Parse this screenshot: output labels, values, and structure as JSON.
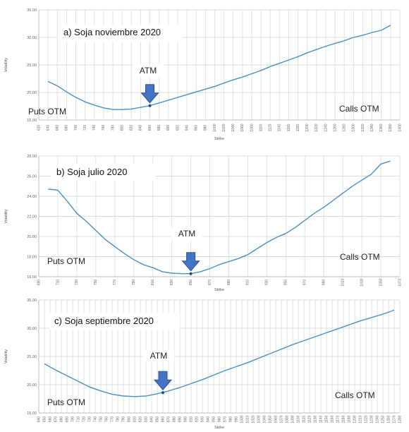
{
  "chart_data": [
    {
      "type": "line",
      "title": "a) Soja noviembre 2020",
      "xlabel": "Strike",
      "ylabel": "Volatility",
      "xlim": [
        620,
        1400
      ],
      "ylim": [
        15,
        35
      ],
      "x_ticks": [
        620,
        640,
        660,
        680,
        700,
        720,
        740,
        760,
        780,
        800,
        820,
        840,
        860,
        880,
        900,
        920,
        940,
        960,
        980,
        1000,
        1020,
        1040,
        1060,
        1080,
        1100,
        1120,
        1140,
        1160,
        1180,
        1200,
        1220,
        1240,
        1260,
        1280,
        1300,
        1320,
        1340,
        1360,
        1380,
        1400
      ],
      "y_ticks": [
        15,
        20,
        25,
        30,
        35
      ],
      "y_tick_labels": [
        "15.00",
        "20.00",
        "25.00",
        "30.00",
        "35.00"
      ],
      "atm": {
        "x": 860,
        "y": 17.6,
        "label": "ATM"
      },
      "puts_label": "Puts OTM",
      "calls_label": "Calls OTM",
      "series": [
        {
          "x": [
            640,
            660,
            680,
            700,
            720,
            740,
            760,
            780,
            800,
            820,
            840,
            860,
            880,
            900,
            920,
            940,
            960,
            980,
            1000,
            1020,
            1040,
            1060,
            1080,
            1100,
            1120,
            1140,
            1160,
            1180,
            1200,
            1220,
            1240,
            1260,
            1280,
            1300,
            1320,
            1340,
            1360,
            1380
          ],
          "y": [
            22.0,
            21.2,
            20.1,
            19.1,
            18.3,
            17.7,
            17.2,
            16.9,
            16.9,
            17.0,
            17.3,
            17.6,
            18.1,
            18.6,
            19.1,
            19.6,
            20.1,
            20.6,
            21.1,
            21.7,
            22.3,
            22.8,
            23.4,
            24.0,
            24.7,
            25.3,
            25.9,
            26.5,
            27.2,
            27.8,
            28.4,
            28.9,
            29.4,
            30.0,
            30.4,
            30.9,
            31.3,
            32.2
          ]
        }
      ]
    },
    {
      "type": "line",
      "title": "b) Soja julio 2020",
      "xlabel": "Strike",
      "ylabel": "Volatility",
      "xlim": [
        690,
        1070
      ],
      "ylim": [
        16,
        28
      ],
      "x_ticks": [
        690,
        710,
        730,
        750,
        770,
        790,
        810,
        830,
        850,
        870,
        890,
        910,
        930,
        950,
        970,
        990,
        1010,
        1030,
        1050,
        1070
      ],
      "y_ticks": [
        16,
        18,
        20,
        22,
        24,
        26,
        28
      ],
      "y_tick_labels": [
        "16.00",
        "18.00",
        "20.00",
        "22.00",
        "24.00",
        "26.00",
        "28.00"
      ],
      "atm": {
        "x": 850,
        "y": 16.3,
        "label": "ATM"
      },
      "puts_label": "Puts OTM",
      "calls_label": "Calls OTM",
      "series": [
        {
          "x": [
            700,
            710,
            720,
            730,
            740,
            750,
            760,
            770,
            780,
            790,
            800,
            810,
            820,
            830,
            840,
            850,
            860,
            870,
            880,
            890,
            900,
            910,
            920,
            930,
            940,
            950,
            960,
            970,
            980,
            990,
            1000,
            1010,
            1020,
            1030,
            1040,
            1050,
            1060
          ],
          "y": [
            24.7,
            24.6,
            23.5,
            22.3,
            21.5,
            20.6,
            19.7,
            19.0,
            18.3,
            17.7,
            17.2,
            16.9,
            16.5,
            16.35,
            16.3,
            16.3,
            16.5,
            16.8,
            17.2,
            17.5,
            17.8,
            18.2,
            18.8,
            19.4,
            19.9,
            20.3,
            20.9,
            21.6,
            22.3,
            22.9,
            23.6,
            24.3,
            25.0,
            25.6,
            26.2,
            27.2,
            27.5
          ]
        }
      ]
    },
    {
      "type": "line",
      "title": "c) Soja septiembre 2020",
      "xlabel": "Strike",
      "ylabel": "Volatility",
      "xlim": [
        640,
        1280
      ],
      "ylim": [
        15,
        35
      ],
      "x_ticks": [
        640,
        650,
        660,
        670,
        680,
        690,
        700,
        710,
        720,
        730,
        740,
        750,
        760,
        770,
        780,
        790,
        800,
        810,
        820,
        830,
        840,
        850,
        860,
        870,
        880,
        890,
        900,
        910,
        920,
        930,
        940,
        950,
        960,
        970,
        980,
        990,
        1000,
        1010,
        1020,
        1030,
        1040,
        1050,
        1060,
        1070,
        1080,
        1090,
        1100,
        1110,
        1120,
        1130,
        1140,
        1150,
        1160,
        1170,
        1180,
        1190,
        1200,
        1210,
        1220,
        1230,
        1240,
        1250,
        1260,
        1270,
        1280
      ],
      "y_ticks": [
        15,
        20,
        25,
        30,
        35
      ],
      "y_tick_labels": [
        "15.00",
        "20.00",
        "25.00",
        "30.00",
        "35.00"
      ],
      "atm": {
        "x": 860,
        "y": 18.6,
        "label": "ATM"
      },
      "puts_label": "Puts OTM",
      "calls_label": "Calls OTM",
      "series": [
        {
          "x": [
            650,
            670,
            690,
            710,
            730,
            750,
            770,
            790,
            810,
            830,
            850,
            870,
            890,
            910,
            930,
            950,
            970,
            990,
            1010,
            1030,
            1050,
            1070,
            1090,
            1110,
            1130,
            1150,
            1170,
            1190,
            1210,
            1230,
            1250,
            1270
          ],
          "y": [
            23.7,
            22.6,
            21.6,
            20.6,
            19.6,
            18.9,
            18.3,
            18.0,
            17.9,
            18.0,
            18.4,
            18.9,
            19.5,
            20.2,
            20.9,
            21.7,
            22.5,
            23.2,
            23.9,
            24.7,
            25.5,
            26.3,
            27.1,
            27.8,
            28.5,
            29.2,
            29.9,
            30.6,
            31.3,
            31.9,
            32.5,
            33.2
          ]
        }
      ]
    }
  ]
}
